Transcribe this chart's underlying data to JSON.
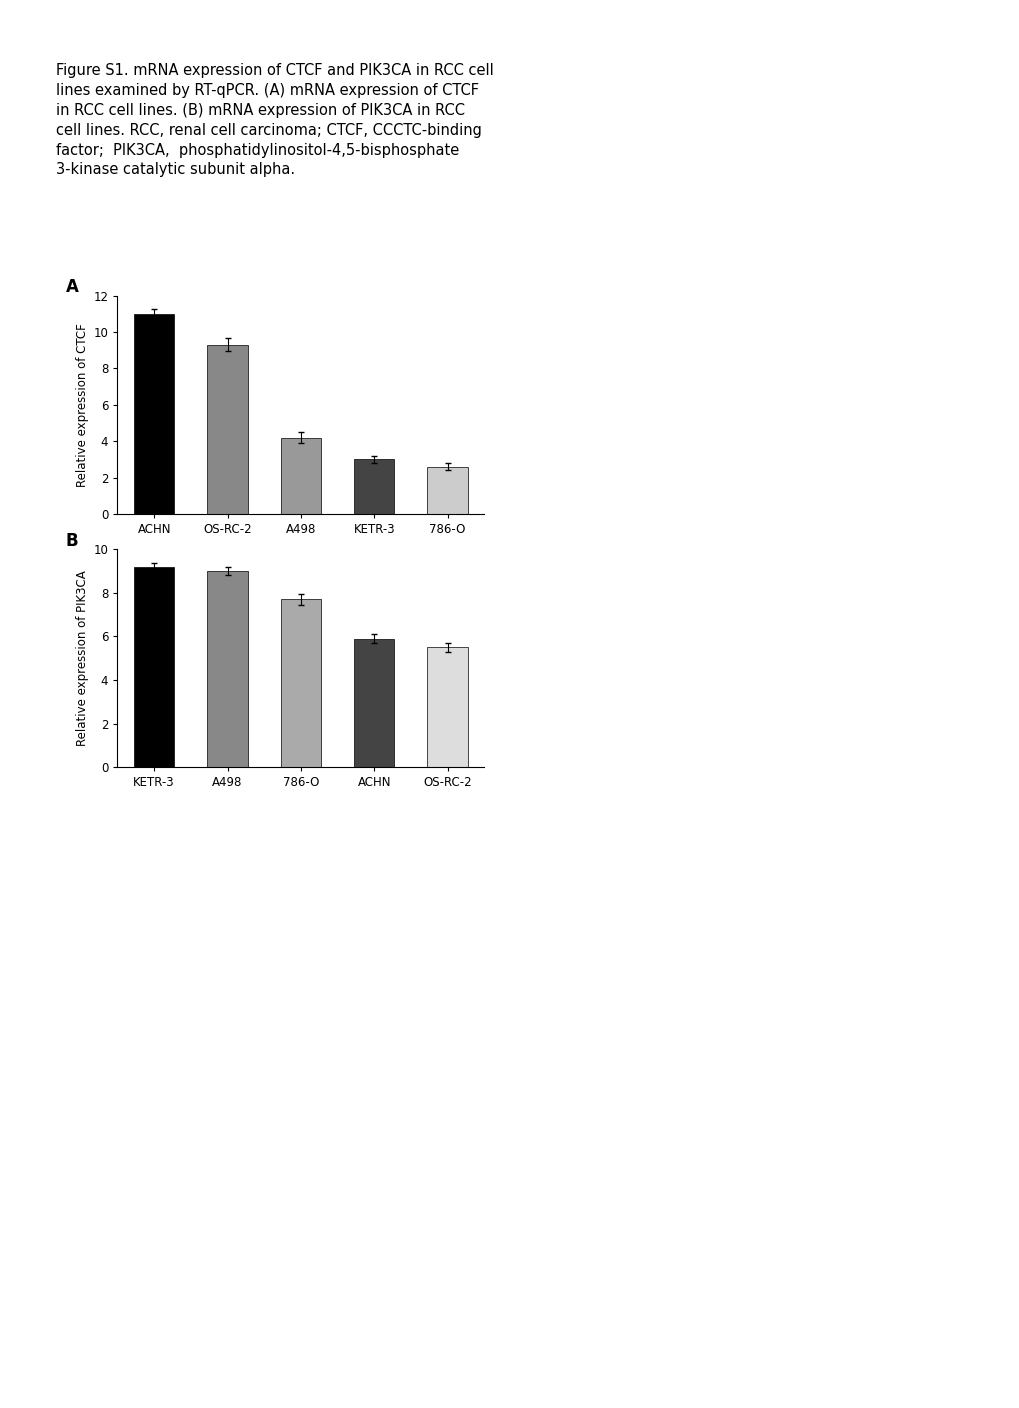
{
  "caption_lines": [
    "Figure S1. mRNA expression of CTCF and PIK3CA in RCC cell",
    "lines examined by RT-qPCR. (A) mRNA expression of CTCF",
    "in RCC cell lines. (B) mRNA expression of PIK3CA in RCC",
    "cell lines. RCC, renal cell carcinoma; CTCF, CCCTC-binding",
    "factor;  PIK3CA,  phosphatidylinositol-4,5-bisphosphate",
    "3-kinase catalytic subunit alpha."
  ],
  "panel_A": {
    "label": "A",
    "categories": [
      "ACHN",
      "OS-RC-2",
      "A498",
      "KETR-3",
      "786-O"
    ],
    "values": [
      11.0,
      9.3,
      4.2,
      3.0,
      2.6
    ],
    "errors": [
      0.25,
      0.35,
      0.3,
      0.2,
      0.2
    ],
    "colors": [
      "#000000",
      "#888888",
      "#999999",
      "#444444",
      "#cccccc"
    ],
    "ylabel": "Relative expression of CTCF",
    "ylim": [
      0,
      12
    ],
    "yticks": [
      0,
      2,
      4,
      6,
      8,
      10,
      12
    ]
  },
  "panel_B": {
    "label": "B",
    "categories": [
      "KETR-3",
      "A498",
      "786-O",
      "ACHN",
      "OS-RC-2"
    ],
    "values": [
      9.2,
      9.0,
      7.7,
      5.9,
      5.5
    ],
    "errors": [
      0.15,
      0.2,
      0.25,
      0.2,
      0.2
    ],
    "colors": [
      "#000000",
      "#888888",
      "#aaaaaa",
      "#444444",
      "#dddddd"
    ],
    "ylabel": "Relative expression of PIK3CA",
    "ylim": [
      0,
      10
    ],
    "yticks": [
      0,
      2,
      4,
      6,
      8,
      10
    ]
  },
  "background_color": "#ffffff",
  "bar_width": 0.55,
  "caption_fontsize": 10.5,
  "axis_label_fontsize": 8.5,
  "tick_fontsize": 8.5,
  "panel_label_fontsize": 12
}
